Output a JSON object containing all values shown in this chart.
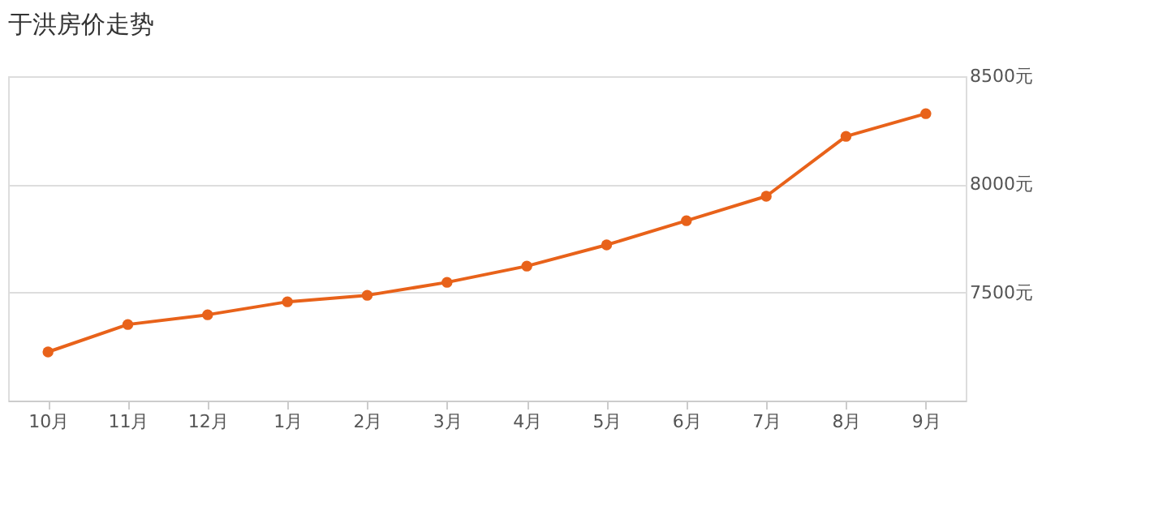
{
  "chart_data": {
    "type": "line",
    "title": "于洪房价走势",
    "categories": [
      "10月",
      "11月",
      "12月",
      "1月",
      "2月",
      "3月",
      "4月",
      "5月",
      "6月",
      "7月",
      "8月",
      "9月"
    ],
    "series": [
      {
        "color": "#e8621a",
        "values": [
          7225,
          7352,
          7397,
          7457,
          7487,
          7547,
          7622,
          7720,
          7832,
          7945,
          8222,
          8327
        ]
      }
    ],
    "ylim": [
      7000,
      8500
    ],
    "yticks": [
      {
        "value": 7500,
        "label": "7500元"
      },
      {
        "value": 8000,
        "label": "8000元"
      },
      {
        "value": 8500,
        "label": "8500元"
      }
    ],
    "grid": "y",
    "marker": "circle",
    "line_style": "solid"
  }
}
